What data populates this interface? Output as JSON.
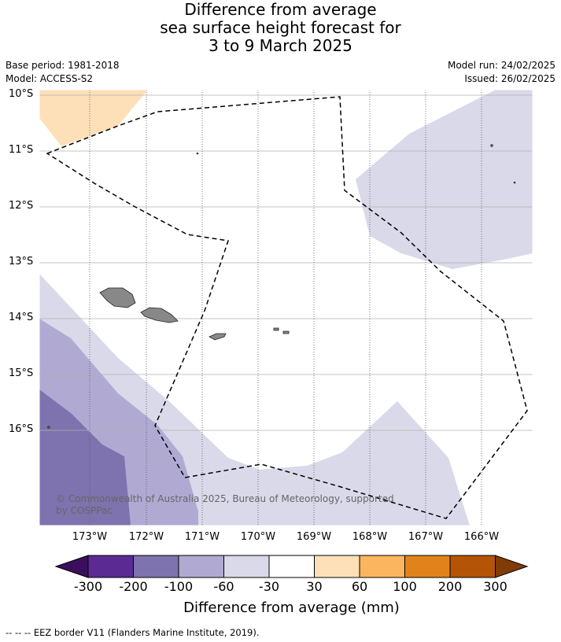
{
  "title": {
    "line1": "Difference from average",
    "line2": "sea surface height forecast for",
    "line3": "3 to 9 March 2025"
  },
  "meta": {
    "base_period": "Base period: 1981-2018",
    "model": "Model: ACCESS-S2",
    "model_run": "Model run: 24/02/2025",
    "issued": "Issued: 26/02/2025"
  },
  "axes": {
    "lat_labels": [
      "10°S",
      "11°S",
      "12°S",
      "13°S",
      "14°S",
      "15°S",
      "16°S"
    ],
    "lon_labels": [
      "173°W",
      "172°W",
      "171°W",
      "170°W",
      "169°W",
      "168°W",
      "167°W",
      "166°W"
    ]
  },
  "colorbar": {
    "title": "Difference from average (mm)",
    "labels": [
      "-300",
      "-200",
      "-100",
      "-60",
      "-30",
      "30",
      "60",
      "100",
      "200",
      "300"
    ],
    "colors": [
      "#3b0f5e",
      "#5b2a93",
      "#7e73ae",
      "#b0aad3",
      "#d9d9ea",
      "#ffffff",
      "#fde0b8",
      "#fbb55e",
      "#e1831a",
      "#b35407",
      "#7f3b08"
    ]
  },
  "copyright": {
    "line1": "© Commonwealth of Australia 2025, Bureau of Meteorology, supported",
    "line2": "by COSPPac"
  },
  "footer": "--  --  -- EEZ border V11 (Flanders Marine Institute, 2019)."
}
